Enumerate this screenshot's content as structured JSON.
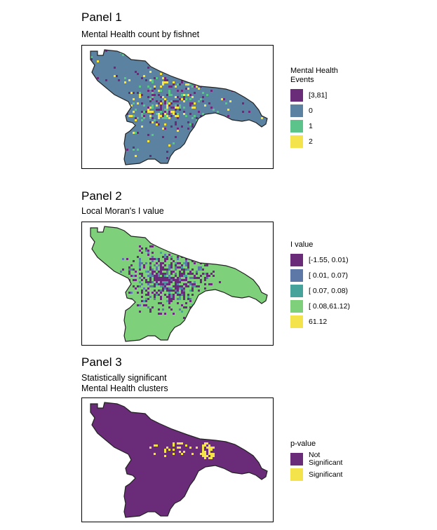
{
  "panels": [
    {
      "title": "Panel 1",
      "subtitle": "Mental Health count by fishnet",
      "legend_title": "Mental Health\nEvents",
      "base_color": "#5b82a0",
      "legend": [
        {
          "label": "[3,81]",
          "color": "#6a2c79"
        },
        {
          "label": "0",
          "color": "#5b82a0"
        },
        {
          "label": "1",
          "color": "#5cc48a"
        },
        {
          "label": "2",
          "color": "#f5e34b"
        }
      ]
    },
    {
      "title": "Panel 2",
      "subtitle": "Local Moran's I value",
      "legend_title": "I value",
      "base_color": "#7fd07a",
      "legend": [
        {
          "label": "[-1.55, 0.01)",
          "color": "#6a2c79"
        },
        {
          "label": "[ 0.01, 0.07)",
          "color": "#5d77a6"
        },
        {
          "label": "[ 0.07, 0.08)",
          "color": "#45a39b"
        },
        {
          "label": "[ 0.08,61.12)",
          "color": "#7fd07a"
        },
        {
          "label": "61.12",
          "color": "#f5e34b"
        }
      ]
    },
    {
      "title": "Panel 3",
      "subtitle": "Statistically significant\nMental Health clusters",
      "legend_title": "p-value",
      "base_color": "#6a2c79",
      "legend": [
        {
          "label": "Not\nSignificant",
          "color": "#6a2c79"
        },
        {
          "label": "Significant",
          "color": "#f5e34b"
        }
      ]
    }
  ]
}
